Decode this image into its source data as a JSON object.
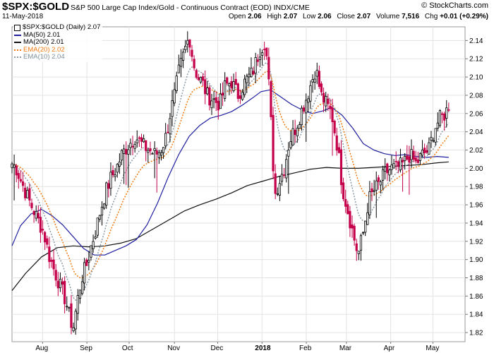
{
  "header": {
    "symbol": "$SPX:$GOLD",
    "description": "S&P 500 Large Cap Index/Gold - Continuous Contract (EOD) INDX/CME",
    "brand": "© StockCharts.com",
    "date": "11-May-2018",
    "open_label": "Open",
    "open": "2.06",
    "high_label": "High",
    "high": "2.07",
    "low_label": "Low",
    "low": "2.06",
    "close_label": "Close",
    "close": "2.07",
    "volume_label": "Volume",
    "volume": "7,516",
    "chg_label": "Chg",
    "chg": "+0.01 (+0.29%)"
  },
  "legend": [
    {
      "label": "$SPX:$GOLD (Daily) 2.07",
      "color": "#000000",
      "style": "box",
      "text_color": "#000000"
    },
    {
      "label": "MA(50) 2.01",
      "color": "#1f1f9f",
      "style": "solid",
      "text_color": "#000000"
    },
    {
      "label": "MA(200) 2.01",
      "color": "#111111",
      "style": "solid",
      "text_color": "#000000"
    },
    {
      "label": "EMA(20) 2.02",
      "color": "#f07a12",
      "style": "dot",
      "text_color": "#f07a12"
    },
    {
      "label": "EMA(10) 2.04",
      "color": "#8a9aa6",
      "style": "dot",
      "text_color": "#7d8f9a"
    }
  ],
  "chart_data": {
    "type": "candlestick",
    "ylim": [
      1.81,
      2.155
    ],
    "y_ticks": [
      "1.82",
      "1.84",
      "1.86",
      "1.88",
      "1.90",
      "1.92",
      "1.94",
      "1.96",
      "1.98",
      "2.00",
      "2.02",
      "2.04",
      "2.06",
      "2.08",
      "2.10",
      "2.12",
      "2.14"
    ],
    "x_labels": [
      {
        "label": "Aug",
        "x": 46,
        "bold": false
      },
      {
        "label": "Sep",
        "x": 88,
        "bold": false
      },
      {
        "label": "Oct",
        "x": 128,
        "bold": false
      },
      {
        "label": "Nov",
        "x": 171,
        "bold": false
      },
      {
        "label": "Dec",
        "x": 212,
        "bold": false
      },
      {
        "label": "2018",
        "x": 254,
        "bold": true
      },
      {
        "label": "Feb",
        "x": 296,
        "bold": false
      },
      {
        "label": "Mar",
        "x": 334,
        "bold": false
      },
      {
        "label": "Apr",
        "x": 376,
        "bold": false
      },
      {
        "label": "May",
        "x": 416,
        "bold": false
      }
    ],
    "x_range": [
      17,
      440
    ],
    "colors": {
      "up": "#000000",
      "down": "#c4004a",
      "ma50": "#1f1f9f",
      "ma200": "#111111",
      "ema20": "#f07a12",
      "ema10": "#8a9aa6",
      "grid": "#e3e3e3"
    },
    "waypoints": [
      [
        17,
        2.005
      ],
      [
        21,
        2.0
      ],
      [
        26,
        1.985
      ],
      [
        33,
        1.965
      ],
      [
        41,
        1.945
      ],
      [
        47,
        1.93
      ],
      [
        52,
        1.905
      ],
      [
        58,
        1.885
      ],
      [
        63,
        1.87
      ],
      [
        68,
        1.855
      ],
      [
        72,
        1.835
      ],
      [
        75,
        1.825
      ],
      [
        79,
        1.855
      ],
      [
        83,
        1.88
      ],
      [
        88,
        1.895
      ],
      [
        92,
        1.915
      ],
      [
        97,
        1.935
      ],
      [
        101,
        1.955
      ],
      [
        106,
        1.975
      ],
      [
        111,
        1.99
      ],
      [
        116,
        2.0
      ],
      [
        121,
        2.015
      ],
      [
        127,
        2.025
      ],
      [
        134,
        2.035
      ],
      [
        141,
        2.025
      ],
      [
        147,
        2.02
      ],
      [
        153,
        2.015
      ],
      [
        158,
        2.02
      ],
      [
        163,
        2.035
      ],
      [
        167,
        2.06
      ],
      [
        171,
        2.08
      ],
      [
        175,
        2.105
      ],
      [
        181,
        2.13
      ],
      [
        185,
        2.145
      ],
      [
        189,
        2.115
      ],
      [
        193,
        2.1
      ],
      [
        197,
        2.095
      ],
      [
        202,
        2.08
      ],
      [
        208,
        2.075
      ],
      [
        214,
        2.07
      ],
      [
        219,
        2.09
      ],
      [
        225,
        2.095
      ],
      [
        231,
        2.08
      ],
      [
        238,
        2.095
      ],
      [
        245,
        2.105
      ],
      [
        252,
        2.13
      ],
      [
        257,
        2.14
      ],
      [
        260,
        2.1
      ],
      [
        263,
        2.04
      ],
      [
        266,
        1.97
      ],
      [
        270,
        1.985
      ],
      [
        275,
        2.0
      ],
      [
        280,
        2.03
      ],
      [
        286,
        2.045
      ],
      [
        292,
        2.065
      ],
      [
        297,
        2.08
      ],
      [
        301,
        2.095
      ],
      [
        305,
        2.11
      ],
      [
        310,
        2.08
      ],
      [
        315,
        2.07
      ],
      [
        320,
        2.06
      ],
      [
        326,
        2.02
      ],
      [
        330,
        1.98
      ],
      [
        335,
        1.955
      ],
      [
        340,
        1.93
      ],
      [
        345,
        1.905
      ],
      [
        350,
        1.93
      ],
      [
        355,
        1.965
      ],
      [
        360,
        1.975
      ],
      [
        366,
        1.985
      ],
      [
        371,
        1.995
      ],
      [
        377,
        2.0
      ],
      [
        382,
        2.0
      ],
      [
        388,
        2.005
      ],
      [
        394,
        2.015
      ],
      [
        400,
        2.005
      ],
      [
        406,
        2.015
      ],
      [
        412,
        2.02
      ],
      [
        418,
        2.045
      ],
      [
        423,
        2.055
      ],
      [
        428,
        2.06
      ],
      [
        431,
        2.07
      ]
    ],
    "ma50": [
      [
        17,
        1.915
      ],
      [
        25,
        1.937
      ],
      [
        35,
        1.95
      ],
      [
        45,
        1.955
      ],
      [
        55,
        1.948
      ],
      [
        65,
        1.938
      ],
      [
        75,
        1.925
      ],
      [
        85,
        1.912
      ],
      [
        95,
        1.905
      ],
      [
        105,
        1.905
      ],
      [
        115,
        1.91
      ],
      [
        125,
        1.915
      ],
      [
        135,
        1.922
      ],
      [
        145,
        1.938
      ],
      [
        155,
        1.962
      ],
      [
        165,
        1.99
      ],
      [
        175,
        2.015
      ],
      [
        185,
        2.035
      ],
      [
        195,
        2.047
      ],
      [
        205,
        2.055
      ],
      [
        215,
        2.058
      ],
      [
        225,
        2.062
      ],
      [
        235,
        2.069
      ],
      [
        245,
        2.077
      ],
      [
        253,
        2.084
      ],
      [
        262,
        2.086
      ],
      [
        272,
        2.078
      ],
      [
        282,
        2.07
      ],
      [
        292,
        2.064
      ],
      [
        302,
        2.06
      ],
      [
        312,
        2.063
      ],
      [
        320,
        2.067
      ],
      [
        330,
        2.058
      ],
      [
        340,
        2.044
      ],
      [
        350,
        2.027
      ],
      [
        360,
        2.02
      ],
      [
        370,
        2.016
      ],
      [
        380,
        2.014
      ],
      [
        390,
        2.015
      ],
      [
        400,
        2.013
      ],
      [
        410,
        2.012
      ],
      [
        420,
        2.013
      ],
      [
        431,
        2.012
      ]
    ],
    "ma200": [
      [
        17,
        1.866
      ],
      [
        30,
        1.885
      ],
      [
        45,
        1.903
      ],
      [
        60,
        1.913
      ],
      [
        75,
        1.915
      ],
      [
        90,
        1.914
      ],
      [
        105,
        1.915
      ],
      [
        120,
        1.918
      ],
      [
        135,
        1.923
      ],
      [
        150,
        1.933
      ],
      [
        165,
        1.943
      ],
      [
        180,
        1.953
      ],
      [
        195,
        1.96
      ],
      [
        210,
        1.966
      ],
      [
        225,
        1.973
      ],
      [
        240,
        1.981
      ],
      [
        255,
        1.986
      ],
      [
        270,
        1.991
      ],
      [
        285,
        1.995
      ],
      [
        300,
        1.999
      ],
      [
        315,
        2.001
      ],
      [
        330,
        2.0
      ],
      [
        345,
        2.0
      ],
      [
        360,
        2.001
      ],
      [
        375,
        2.002
      ],
      [
        390,
        2.003
      ],
      [
        405,
        2.004
      ],
      [
        420,
        2.006
      ],
      [
        431,
        2.007
      ]
    ]
  }
}
